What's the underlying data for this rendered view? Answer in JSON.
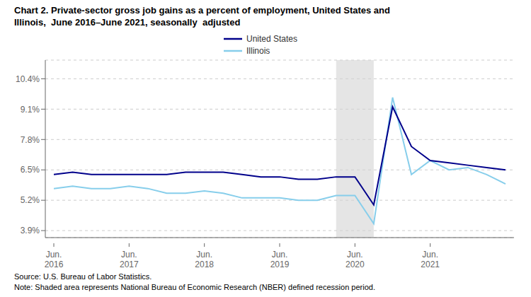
{
  "chart_data": {
    "type": "line",
    "title": "Chart 2. Private-sector gross job gains as a percent of employment, United States and\nIllinois,  June 2016–June 2021, seasonally  adjusted",
    "footnotes": [
      "Source: U.S. Bureau of Labor Statistics.",
      "Note: Shaded area represents National Bureau of Economic Research (NBER) defined recession period."
    ],
    "categories": [
      "Jun.\n2016",
      null,
      null,
      null,
      "Jun.\n2017",
      null,
      null,
      null,
      "Jun.\n2018",
      null,
      null,
      null,
      "Jun.\n2019",
      null,
      null,
      null,
      "Jun.\n2020",
      null,
      null,
      null,
      "Jun.\n2021",
      null,
      null,
      null,
      null
    ],
    "series": [
      {
        "name": "United States",
        "color": "#00008B",
        "values": [
          6.3,
          6.4,
          6.3,
          6.3,
          6.3,
          6.3,
          6.3,
          6.4,
          6.4,
          6.4,
          6.3,
          6.2,
          6.2,
          6.1,
          6.1,
          6.2,
          6.2,
          5.0,
          9.2,
          7.5,
          6.9,
          6.8,
          6.7,
          6.6,
          6.5
        ]
      },
      {
        "name": "Illinois",
        "color": "#87CEEB",
        "values": [
          5.7,
          5.8,
          5.7,
          5.7,
          5.8,
          5.7,
          5.5,
          5.5,
          5.6,
          5.5,
          5.3,
          5.3,
          5.3,
          5.2,
          5.2,
          5.4,
          5.4,
          4.2,
          9.6,
          6.3,
          6.9,
          6.5,
          6.6,
          6.3,
          5.9
        ]
      }
    ],
    "ylim": [
      3.6,
      11.2
    ],
    "yticks": [
      {
        "value": 3.9,
        "label": "3.9%"
      },
      {
        "value": 5.2,
        "label": "5.2%"
      },
      {
        "value": 6.5,
        "label": "6.5%"
      },
      {
        "value": 7.8,
        "label": "7.8%"
      },
      {
        "value": 9.1,
        "label": "9.1%"
      },
      {
        "value": 10.4,
        "label": "10.4%"
      }
    ],
    "grid": "y",
    "legend": "top",
    "shaded_range": {
      "from": 15,
      "to": 17,
      "color": "#d3d3d3"
    }
  }
}
